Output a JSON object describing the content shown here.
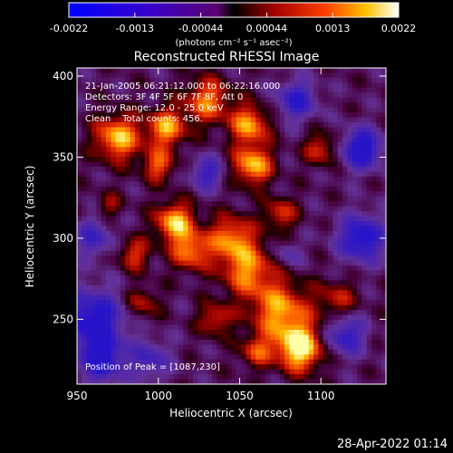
{
  "chart_data": {
    "type": "heatmap",
    "title": "Reconstructed RHESSI Image",
    "xlabel": "Heliocentric X (arcsec)",
    "ylabel": "Heliocentric Y (arcsec)",
    "xlim": [
      950,
      1140
    ],
    "ylim": [
      210,
      405
    ],
    "xticks": [
      "950",
      "1000",
      "1050",
      "1100"
    ],
    "yticks": [
      "250",
      "300",
      "350",
      "400"
    ],
    "colorbar": {
      "ticks": [
        "-0.0022",
        "-0.0013",
        "-0.00044",
        "0.00044",
        "0.0013",
        "0.0022"
      ],
      "unit": "(photons cm⁻² s⁻¹ asec⁻²)",
      "range": [
        -0.0022,
        0.0022
      ]
    },
    "annotations": [
      "21-Jan-2005 06:21:12.000 to 06:22:16.000",
      "Detectors: 3F 4F 5F 6F 7F 8F, Att 0",
      "Energy Range: 12.0 - 25.0 keV",
      "Clean    Total counts: 456."
    ],
    "peak_label": "Position of Peak = [1087,230]",
    "peak": [
      1087,
      230
    ],
    "timestamp": "28-Apr-2022 01:14",
    "grid": false
  }
}
